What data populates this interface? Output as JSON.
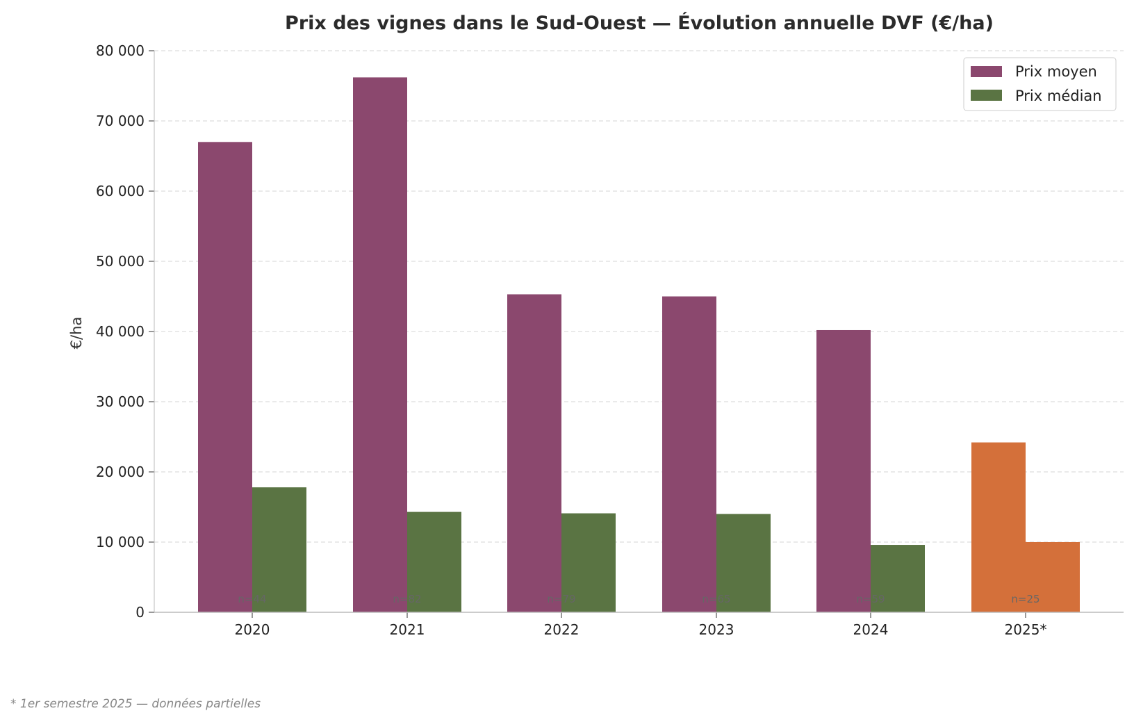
{
  "chart_data": {
    "type": "bar",
    "title": "Prix des vignes dans le Sud-Ouest — Évolution annuelle DVF (€/ha)",
    "xlabel": "",
    "ylabel": "€/ha",
    "ylim": [
      0,
      80000
    ],
    "yticks": [
      0,
      10000,
      20000,
      30000,
      40000,
      50000,
      60000,
      70000,
      80000
    ],
    "ytick_labels": [
      "0",
      "10 000",
      "20 000",
      "30 000",
      "40 000",
      "50 000",
      "60 000",
      "70 000",
      "80 000"
    ],
    "grid": "horizontal dashed",
    "legend_placement": "top-right",
    "categories": [
      "2020",
      "2021",
      "2022",
      "2023",
      "2024",
      "2025*"
    ],
    "series": [
      {
        "name": "Prix moyen",
        "color": "#8B486E",
        "values": [
          67000,
          76200,
          45300,
          45000,
          40200,
          24200
        ]
      },
      {
        "name": "Prix médian",
        "color": "#5A7443",
        "values": [
          17800,
          14300,
          14100,
          14000,
          9600,
          10000
        ]
      }
    ],
    "highlight_category": "2025*",
    "highlight_color": "#D4703A",
    "annotations": [
      "n=44",
      "n=82",
      "n=79",
      "n=65",
      "n=59",
      "n=25"
    ],
    "footnote": "* 1er semestre 2025 — données partielles"
  }
}
